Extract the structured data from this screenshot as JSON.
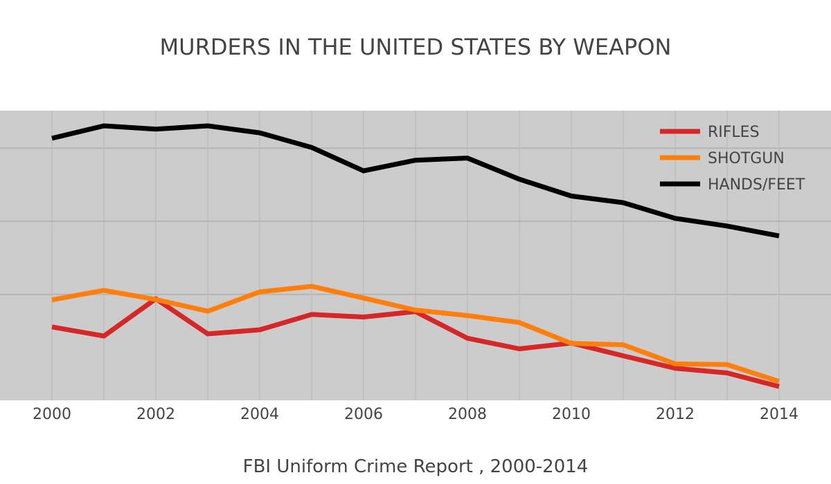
{
  "chart_data": {
    "type": "line",
    "title": "MURDERS IN THE UNITED STATES BY WEAPON",
    "subtitle": "FBI Uniform Crime Report , 2000-2014",
    "xlabel": "",
    "ylabel": "",
    "x": [
      2000,
      2001,
      2002,
      2003,
      2004,
      2005,
      2006,
      2007,
      2008,
      2009,
      2010,
      2011,
      2012,
      2013,
      2014
    ],
    "x_ticks": [
      "2000",
      "2002",
      "2004",
      "2006",
      "2008",
      "2010",
      "2012",
      "2014"
    ],
    "xlim": [
      2000,
      2014
    ],
    "ylim": [
      250,
      1050
    ],
    "y_gridlines": [
      500,
      700,
      900
    ],
    "grid": true,
    "y_tick_labels_shown": false,
    "legend_position": "top-right",
    "background": "#cccccc",
    "series": [
      {
        "name": "RIFLES",
        "color": "#d62728",
        "values": [
          411,
          386,
          488,
          392,
          403,
          445,
          438,
          453,
          380,
          351,
          367,
          332,
          298,
          285,
          248
        ]
      },
      {
        "name": "SHOTGUN",
        "color": "#ff7f0e",
        "values": [
          485,
          511,
          486,
          454,
          507,
          522,
          490,
          457,
          442,
          423,
          366,
          362,
          310,
          308,
          262
        ]
      },
      {
        "name": "HANDS/FEET",
        "color": "#000000",
        "values": [
          927,
          961,
          952,
          961,
          942,
          902,
          838,
          867,
          873,
          815,
          769,
          751,
          708,
          687,
          660
        ]
      }
    ]
  }
}
